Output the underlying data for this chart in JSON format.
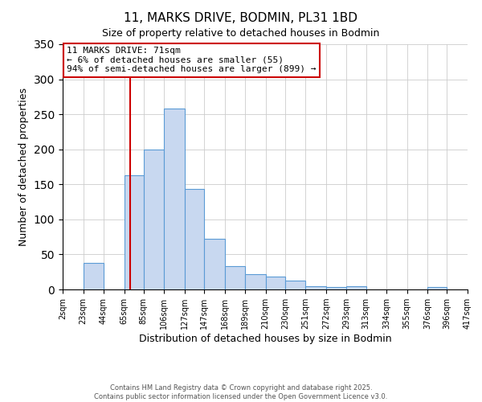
{
  "title": "11, MARKS DRIVE, BODMIN, PL31 1BD",
  "subtitle": "Size of property relative to detached houses in Bodmin",
  "xlabel": "Distribution of detached houses by size in Bodmin",
  "ylabel": "Number of detached properties",
  "bar_color": "#c8d8f0",
  "bar_edge_color": "#5b9bd5",
  "background_color": "#ffffff",
  "grid_color": "#cccccc",
  "bin_edges": [
    2,
    23,
    44,
    65,
    85,
    106,
    127,
    147,
    168,
    189,
    210,
    230,
    251,
    272,
    293,
    313,
    334,
    355,
    376,
    396,
    417
  ],
  "bin_labels": [
    "2sqm",
    "23sqm",
    "44sqm",
    "65sqm",
    "85sqm",
    "106sqm",
    "127sqm",
    "147sqm",
    "168sqm",
    "189sqm",
    "210sqm",
    "230sqm",
    "251sqm",
    "272sqm",
    "293sqm",
    "313sqm",
    "334sqm",
    "355sqm",
    "376sqm",
    "396sqm",
    "417sqm"
  ],
  "bar_heights": [
    0,
    38,
    0,
    163,
    200,
    258,
    143,
    72,
    33,
    22,
    18,
    13,
    5,
    3,
    5,
    0,
    0,
    0,
    3,
    0,
    0
  ],
  "ylim": [
    0,
    350
  ],
  "yticks": [
    0,
    50,
    100,
    150,
    200,
    250,
    300,
    350
  ],
  "property_line_x": 71,
  "property_line_color": "#cc0000",
  "annotation_title": "11 MARKS DRIVE: 71sqm",
  "annotation_line1": "← 6% of detached houses are smaller (55)",
  "annotation_line2": "94% of semi-detached houses are larger (899) →",
  "annotation_box_color": "#cc0000",
  "footnote1": "Contains HM Land Registry data © Crown copyright and database right 2025.",
  "footnote2": "Contains public sector information licensed under the Open Government Licence v3.0."
}
